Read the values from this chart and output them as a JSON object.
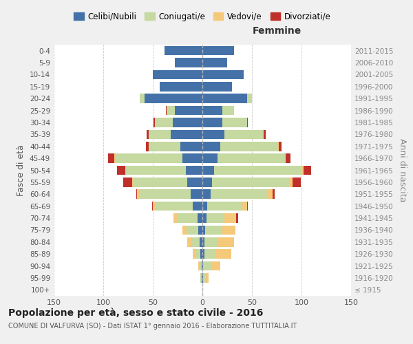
{
  "age_groups": [
    "100+",
    "95-99",
    "90-94",
    "85-89",
    "80-84",
    "75-79",
    "70-74",
    "65-69",
    "60-64",
    "55-59",
    "50-54",
    "45-49",
    "40-44",
    "35-39",
    "30-34",
    "25-29",
    "20-24",
    "15-19",
    "10-14",
    "5-9",
    "0-4"
  ],
  "birth_years": [
    "≤ 1915",
    "1916-1920",
    "1921-1925",
    "1926-1930",
    "1931-1935",
    "1936-1940",
    "1941-1945",
    "1946-1950",
    "1951-1955",
    "1956-1960",
    "1961-1965",
    "1966-1970",
    "1971-1975",
    "1976-1980",
    "1981-1985",
    "1986-1990",
    "1991-1995",
    "1996-2000",
    "2001-2005",
    "2006-2010",
    "2011-2015"
  ],
  "males": {
    "celibe": [
      0,
      1,
      1,
      2,
      3,
      4,
      5,
      10,
      12,
      15,
      17,
      20,
      22,
      32,
      30,
      28,
      58,
      43,
      50,
      28,
      38
    ],
    "coniugato": [
      0,
      1,
      2,
      5,
      8,
      12,
      20,
      38,
      52,
      55,
      60,
      68,
      32,
      22,
      18,
      8,
      5,
      0,
      0,
      0,
      0
    ],
    "vedovo": [
      0,
      0,
      1,
      3,
      4,
      4,
      4,
      2,
      2,
      1,
      1,
      1,
      0,
      0,
      0,
      0,
      0,
      0,
      0,
      0,
      0
    ],
    "divorziato": [
      0,
      0,
      0,
      0,
      0,
      0,
      0,
      1,
      1,
      9,
      8,
      6,
      3,
      2,
      1,
      1,
      0,
      0,
      0,
      0,
      0
    ]
  },
  "females": {
    "nubile": [
      0,
      1,
      1,
      2,
      2,
      3,
      4,
      5,
      8,
      10,
      12,
      15,
      18,
      22,
      20,
      20,
      45,
      30,
      42,
      25,
      32
    ],
    "coniugata": [
      0,
      2,
      8,
      12,
      14,
      17,
      18,
      35,
      58,
      78,
      88,
      68,
      58,
      40,
      25,
      12,
      5,
      0,
      0,
      0,
      0
    ],
    "vedova": [
      0,
      3,
      9,
      15,
      16,
      13,
      12,
      5,
      5,
      3,
      2,
      1,
      1,
      0,
      0,
      0,
      0,
      0,
      0,
      0,
      0
    ],
    "divorziata": [
      0,
      0,
      0,
      0,
      0,
      0,
      2,
      1,
      2,
      8,
      8,
      5,
      3,
      2,
      1,
      0,
      0,
      0,
      0,
      0,
      0
    ]
  },
  "colors": {
    "celibe": "#4472A8",
    "coniugato": "#C5D9A0",
    "vedovo": "#F5C97A",
    "divorziato": "#C0302A"
  },
  "xlim": 150,
  "title": "Popolazione per età, sesso e stato civile - 2016",
  "subtitle": "COMUNE DI VALFURVA (SO) - Dati ISTAT 1° gennaio 2016 - Elaborazione TUTTITALIA.IT",
  "ylabel_left": "Fasce di età",
  "ylabel_right": "Anni di nascita",
  "label_femmine": "Femmine",
  "legend_labels": [
    "Celibi/Nubili",
    "Coniugati/e",
    "Vedovi/e",
    "Divorziati/e"
  ],
  "bg_color": "#f0f0f0",
  "plot_bg": "#ffffff"
}
